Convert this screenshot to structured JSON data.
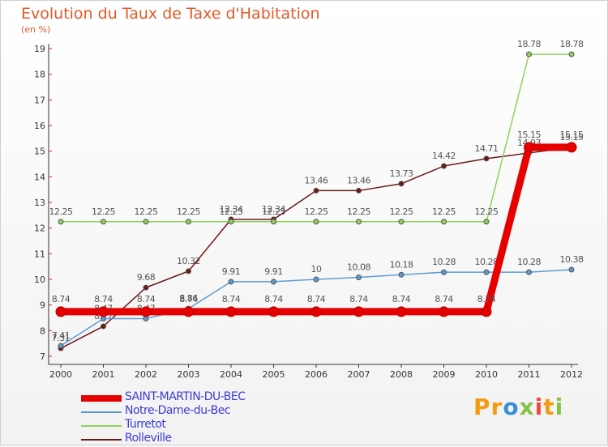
{
  "chart_data": {
    "type": "line",
    "title": "Evolution du Taux de Taxe d'Habitation",
    "unit": "(en %)",
    "x": [
      "2000",
      "2001",
      "2002",
      "2003",
      "2004",
      "2005",
      "2006",
      "2007",
      "2008",
      "2009",
      "2010",
      "2011",
      "2012"
    ],
    "ylim": [
      7,
      19
    ],
    "yticks": [
      "7",
      "8",
      "9",
      "10",
      "11",
      "12",
      "13",
      "14",
      "15",
      "16",
      "17",
      "18",
      "19"
    ],
    "grid": false,
    "legend_position": "bottom-left",
    "series": [
      {
        "name": "Rolleville",
        "color": "#6b1a1a",
        "values": [
          7.31,
          8.17,
          9.68,
          10.32,
          12.34,
          12.34,
          13.46,
          13.46,
          13.73,
          14.42,
          14.71,
          14.93,
          15.15
        ],
        "labels": [
          "7.31",
          "8.17",
          "9.68",
          "10.32",
          "12.34",
          "12.34",
          "13.46",
          "13.46",
          "13.73",
          "14.42",
          "14.71",
          "14.93",
          "15.15"
        ]
      },
      {
        "name": "Turretot",
        "color": "#8ed15a",
        "values": [
          12.25,
          12.25,
          12.25,
          12.25,
          12.25,
          12.25,
          12.25,
          12.25,
          12.25,
          12.25,
          12.25,
          18.78,
          18.78
        ],
        "labels": [
          "12.25",
          "12.25",
          "12.25",
          "12.25",
          "12.25",
          "12.25",
          "12.25",
          "12.25",
          "12.25",
          "12.25",
          "12.25",
          "18.78",
          "18.78"
        ]
      },
      {
        "name": "Notre-Dame-du-Bec",
        "color": "#5b9bd5",
        "values": [
          7.41,
          8.47,
          8.47,
          8.86,
          9.91,
          9.91,
          10,
          10.08,
          10.18,
          10.28,
          10.28,
          10.28,
          10.38
        ],
        "labels": [
          "7.41",
          "8.47",
          "8.47",
          "8.86",
          "9.91",
          "9.91",
          "10",
          "10.08",
          "10.18",
          "10.28",
          "10.28",
          "10.28",
          "10.38"
        ]
      },
      {
        "name": "SAINT-MARTIN-DU-BEC",
        "color": "#e60000",
        "values": [
          8.74,
          8.74,
          8.74,
          8.74,
          8.74,
          8.74,
          8.74,
          8.74,
          8.74,
          8.74,
          8.74,
          15.15,
          15.15
        ],
        "labels": [
          "8.74",
          "8.74",
          "8.74",
          "8.74",
          "8.74",
          "8.74",
          "8.74",
          "8.74",
          "8.74",
          "8.74",
          "8.74",
          "15.15",
          "15.15"
        ]
      }
    ],
    "legend": [
      {
        "name": "SAINT-MARTIN-DU-BEC",
        "color": "#e60000",
        "thickness": 8
      },
      {
        "name": "Notre-Dame-du-Bec",
        "color": "#5b9bd5",
        "thickness": 2
      },
      {
        "name": "Turretot",
        "color": "#8ed15a",
        "thickness": 2
      },
      {
        "name": "Rolleville",
        "color": "#6b1a1a",
        "thickness": 2
      }
    ]
  },
  "logo": {
    "p1": "Pr",
    "p2": "o",
    "p3": "x",
    "p4": "i",
    "p5": "t",
    "p6": "i"
  }
}
